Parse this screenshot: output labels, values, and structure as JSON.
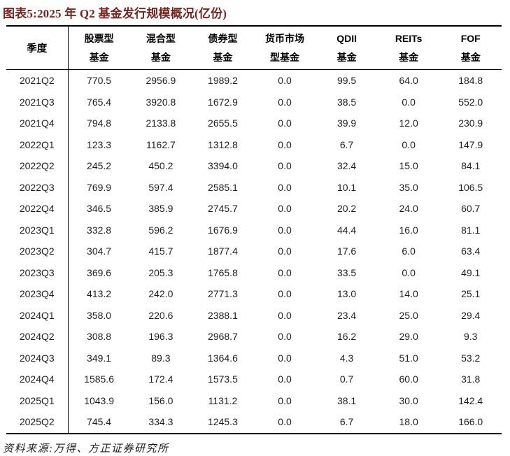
{
  "title": "图表5:2025 年 Q2 基金发行规模概况(亿份)",
  "footer": "资料来源:万得、方正证券研究所",
  "colors": {
    "title_color": "#79241d",
    "text_color": "#1f1f1f",
    "border_color": "#000000",
    "background": "#ffffff"
  },
  "chart_data": {
    "type": "table",
    "title": "图表5:2025 年 Q2 基金发行规模概况(亿份)",
    "quarter_header": "季度",
    "columns": [
      {
        "line1": "股票型",
        "line2": "基金"
      },
      {
        "line1": "混合型",
        "line2": "基金"
      },
      {
        "line1": "债券型",
        "line2": "基金"
      },
      {
        "line1": "货币市场",
        "line2": "型基金"
      },
      {
        "line1": "QDII",
        "line2": "基金"
      },
      {
        "line1": "REITs",
        "line2": "基金"
      },
      {
        "line1": "FOF",
        "line2": "基金"
      }
    ],
    "rows": [
      {
        "quarter": "2021Q2",
        "values": [
          "770.5",
          "2956.9",
          "1989.2",
          "0.0",
          "99.5",
          "64.0",
          "184.8"
        ]
      },
      {
        "quarter": "2021Q3",
        "values": [
          "765.4",
          "3920.8",
          "1672.9",
          "0.0",
          "38.5",
          "0.0",
          "552.0"
        ]
      },
      {
        "quarter": "2021Q4",
        "values": [
          "794.8",
          "2133.8",
          "2655.5",
          "0.0",
          "39.9",
          "12.0",
          "230.9"
        ]
      },
      {
        "quarter": "2022Q1",
        "values": [
          "123.3",
          "1162.7",
          "1312.8",
          "0.0",
          "6.7",
          "0.0",
          "147.9"
        ]
      },
      {
        "quarter": "2022Q2",
        "values": [
          "245.2",
          "450.2",
          "3394.0",
          "0.0",
          "32.4",
          "15.0",
          "84.1"
        ]
      },
      {
        "quarter": "2022Q3",
        "values": [
          "769.9",
          "597.4",
          "2585.1",
          "0.0",
          "10.1",
          "35.0",
          "106.5"
        ]
      },
      {
        "quarter": "2022Q4",
        "values": [
          "346.5",
          "385.9",
          "2745.7",
          "0.0",
          "20.2",
          "24.0",
          "60.7"
        ]
      },
      {
        "quarter": "2023Q1",
        "values": [
          "332.8",
          "596.2",
          "1676.9",
          "0.0",
          "44.4",
          "16.0",
          "81.1"
        ]
      },
      {
        "quarter": "2023Q2",
        "values": [
          "304.7",
          "415.7",
          "1877.4",
          "0.0",
          "17.6",
          "6.0",
          "63.4"
        ]
      },
      {
        "quarter": "2023Q3",
        "values": [
          "369.6",
          "205.3",
          "1765.8",
          "0.0",
          "33.5",
          "0.0",
          "49.1"
        ]
      },
      {
        "quarter": "2023Q4",
        "values": [
          "413.2",
          "242.0",
          "2771.3",
          "0.0",
          "13.0",
          "14.0",
          "25.1"
        ]
      },
      {
        "quarter": "2024Q1",
        "values": [
          "358.0",
          "220.6",
          "2388.1",
          "0.0",
          "23.4",
          "25.0",
          "29.4"
        ]
      },
      {
        "quarter": "2024Q2",
        "values": [
          "308.8",
          "196.3",
          "2968.7",
          "0.0",
          "16.2",
          "29.0",
          "9.3"
        ]
      },
      {
        "quarter": "2024Q3",
        "values": [
          "349.1",
          "89.3",
          "1364.6",
          "0.0",
          "4.3",
          "51.0",
          "53.2"
        ]
      },
      {
        "quarter": "2024Q4",
        "values": [
          "1585.6",
          "172.4",
          "1573.5",
          "0.0",
          "0.7",
          "60.0",
          "31.8"
        ]
      },
      {
        "quarter": "2025Q1",
        "values": [
          "1043.9",
          "156.0",
          "1131.2",
          "0.0",
          "38.1",
          "30.0",
          "142.4"
        ]
      },
      {
        "quarter": "2025Q2",
        "values": [
          "745.4",
          "334.3",
          "1245.3",
          "0.0",
          "6.7",
          "18.0",
          "166.0"
        ]
      }
    ],
    "source_note": "资料来源:万得、方正证券研究所"
  }
}
